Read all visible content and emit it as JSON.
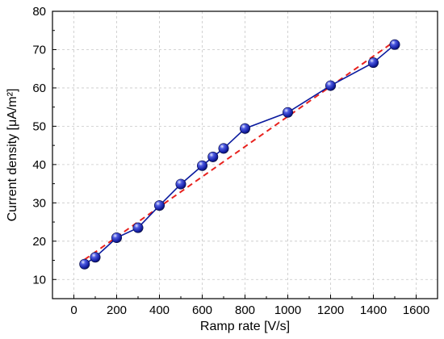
{
  "chart_data": {
    "type": "line",
    "title": "",
    "xlabel": "Ramp rate [V/s]",
    "ylabel": "Current density [μA/m²]",
    "xlim": [
      -100,
      1700
    ],
    "ylim": [
      5,
      80
    ],
    "xticks": [
      0,
      200,
      400,
      600,
      800,
      1000,
      1200,
      1400,
      1600
    ],
    "yticks": [
      10,
      20,
      30,
      40,
      50,
      60,
      70,
      80
    ],
    "grid": true,
    "legend": "none",
    "series": [
      {
        "style": "line-with-markers",
        "color": "#0a1a9e",
        "marker_color": "#1c28b8",
        "x": [
          50,
          100,
          200,
          300,
          400,
          500,
          600,
          650,
          700,
          800,
          1000,
          1200,
          1400,
          1500
        ],
        "y": [
          14.0,
          15.8,
          20.9,
          23.5,
          29.3,
          34.9,
          39.7,
          42.0,
          44.2,
          49.4,
          53.6,
          60.6,
          66.6,
          71.3
        ]
      },
      {
        "style": "dashed-fit",
        "color": "#e8221e",
        "x": [
          50,
          1500
        ],
        "y": [
          15.2,
          72.2
        ]
      }
    ]
  }
}
